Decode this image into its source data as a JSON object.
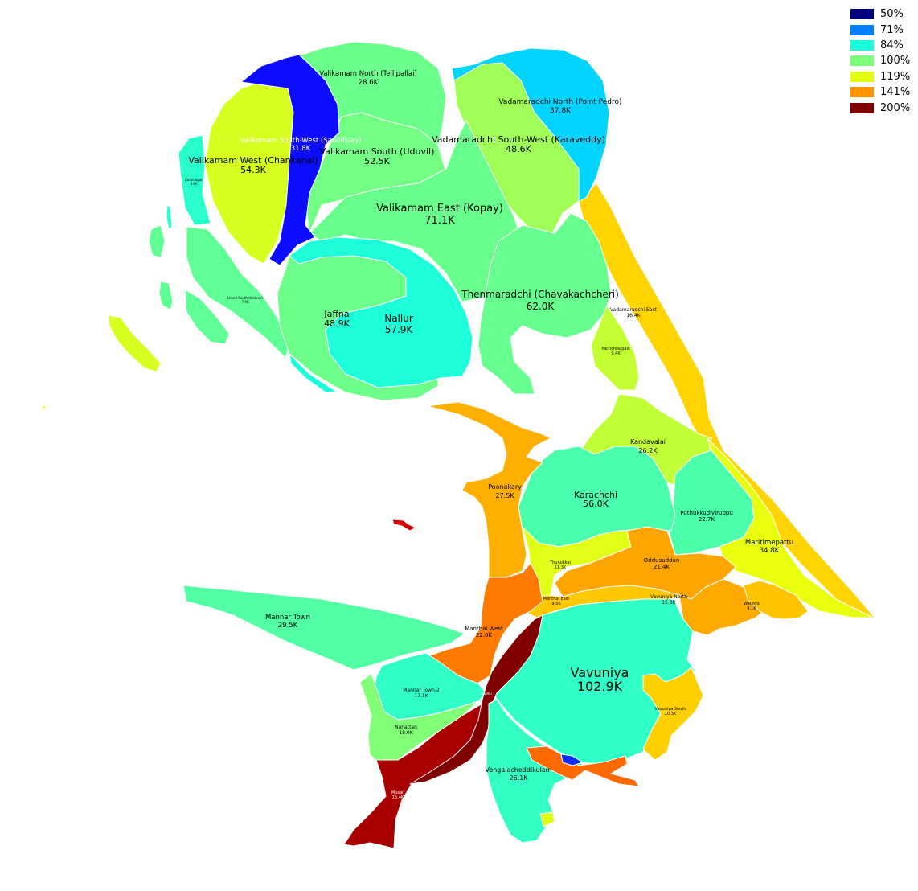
{
  "legend": [
    {
      "label": "50%",
      "color": "#00007f"
    },
    {
      "label": "71%",
      "color": "#0080ff"
    },
    {
      "label": "84%",
      "color": "#19ffdd"
    },
    {
      "label": "100%",
      "color": "#7dff7a"
    },
    {
      "label": "119%",
      "color": "#e4ff12"
    },
    {
      "label": "141%",
      "color": "#ff9400"
    },
    {
      "label": "200%",
      "color": "#7f0000"
    }
  ],
  "regions": {
    "valikamam_north": {
      "name": "Valikamam North (Tellipallai)",
      "value": "28.6K",
      "color": "#6bff8b"
    },
    "valikamam_south_west": {
      "name": "Valikamam South-West (Sandilipay)",
      "value": "31.8K",
      "color": "#0c0cff"
    },
    "valikamam_west": {
      "name": "Valikamam West (Chankanai)",
      "value": "54.3K",
      "color": "#d7ff1f"
    },
    "valikamam_south": {
      "name": "Valikamam South (Uduvil)",
      "value": "52.5K",
      "color": "#73ff83"
    },
    "vadamaradchi_north": {
      "name": "Vadamaradchi North (Point Pedro)",
      "value": "37.8K",
      "color": "#00d4ff"
    },
    "vadamaradchi_south_west": {
      "name": "Vadamaradchi South-West (Karaveddy)",
      "value": "48.6K",
      "color": "#a0ff56"
    },
    "valikamam_east": {
      "name": "Valikamam East (Kopay)",
      "value": "71.1K",
      "color": "#69ff8d"
    },
    "karainagar": {
      "name": "Karainagar",
      "value": "8.6K",
      "color": "#29ffcd"
    },
    "island_south": {
      "name": "Island South (Velanai)",
      "value": "7.9K",
      "color": "#60ff96"
    },
    "jaffna": {
      "name": "Jaffna",
      "value": "48.9K",
      "color": "#6dff89"
    },
    "nallur": {
      "name": "Nallur",
      "value": "57.9K",
      "color": "#1cffda"
    },
    "thenmaradchi": {
      "name": "Thenmaradchi (Chavakachcheri)",
      "value": "62.0K",
      "color": "#66ff90"
    },
    "vadamaradchi_east": {
      "name": "Vadamaradchi East",
      "value": "16.4K",
      "color": "#ffd700"
    },
    "pachchilaipalli": {
      "name": "Pachchilaipalli",
      "value": "9.4K",
      "color": "#c4ff33"
    },
    "kandavalai": {
      "name": "Kandavalai",
      "value": "26.2K",
      "color": "#c1ff36"
    },
    "poonakary": {
      "name": "Poonakary",
      "value": "27.5K",
      "color": "#ffaf00"
    },
    "karachchi": {
      "name": "Karachchi",
      "value": "56.0K",
      "color": "#49ffad"
    },
    "puthukkudiyiruppu": {
      "name": "Puthukkudiyiruppu",
      "value": "22.7K",
      "color": "#4cffaa"
    },
    "maritimepattu": {
      "name": "Maritimepattu",
      "value": "34.8K",
      "color": "#e8ff0f"
    },
    "oddusuddan": {
      "name": "Oddusuddan",
      "value": "21.4K",
      "color": "#ffa500"
    },
    "thunukkai": {
      "name": "Thunukkai",
      "value": "11.3K",
      "color": "#e1ff16"
    },
    "manthai_east": {
      "name": "Manthai East",
      "value": "9.5K",
      "color": "#ffc800"
    },
    "vavuniya_north": {
      "name": "Vavuniya North",
      "value": "15.8K",
      "color": "#ffaa00"
    },
    "weliova": {
      "name": "Welioya",
      "value": "9.1K",
      "color": "#ffc400"
    },
    "mannar_town": {
      "name": "Mannar Town",
      "value": "29.5K",
      "color": "#53ffa4"
    },
    "manthai_west": {
      "name": "Manthai West",
      "value": "22.0K",
      "color": "#ff7a00"
    },
    "vavuniya": {
      "name": "Vavuniya",
      "value": "102.9K",
      "color": "#30ffc7"
    },
    "mannar_town_2": {
      "name": "Mannar Town-2",
      "value": "17.1K",
      "color": "#30ffc7"
    },
    "nanattan": {
      "name": "Nanattan",
      "value": "18.0K",
      "color": "#80ff77"
    },
    "vavuniya_south": {
      "name": "Vavuniya South",
      "value": "10.3K",
      "color": "#ffd000"
    },
    "vengalacheddikulam": {
      "name": "Vengalacheddikulam",
      "value": "26.1K",
      "color": "#33ffc4"
    },
    "musali": {
      "name": "Musali",
      "value": "15.4K",
      "color": "#a80000"
    },
    "madhu": {
      "name": "Madhu",
      "value": "",
      "color": "#800000"
    },
    "vengala_south_strip": {
      "name": "",
      "value": "",
      "color": "#ff6a00"
    },
    "small_blue": {
      "name": "",
      "value": "",
      "color": "#0a2aff"
    },
    "coast_east": {
      "name": "",
      "value": "",
      "color": "#ffd400"
    },
    "islet_red": {
      "name": "",
      "value": "",
      "color": "#cc0000"
    }
  }
}
